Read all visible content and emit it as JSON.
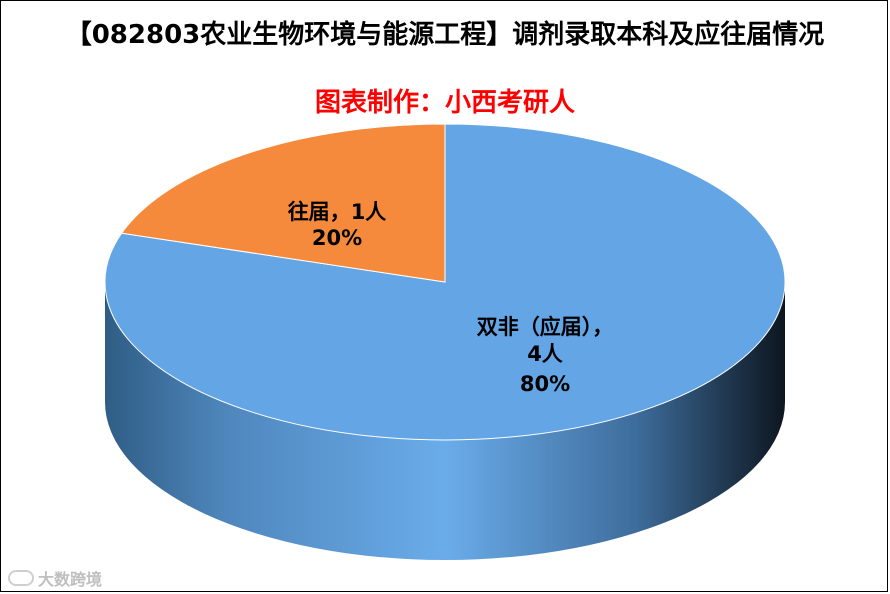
{
  "chart_data": {
    "type": "pie",
    "title": "【082803农业生物环境与能源工程】调剂录取本科及应往届情况",
    "subtitle": "图表制作：小西考研人",
    "slices": [
      {
        "label": "双非（应届），",
        "count_label": "4人",
        "percent_label": "80%",
        "value": 4,
        "percent": 80,
        "color": "#64a5e5"
      },
      {
        "label": "往届，",
        "count_label": "1人",
        "percent_label": "20%",
        "value": 1,
        "percent": 20,
        "color": "#f68a3c"
      }
    ]
  },
  "watermark": {
    "text": "大数跨境"
  }
}
